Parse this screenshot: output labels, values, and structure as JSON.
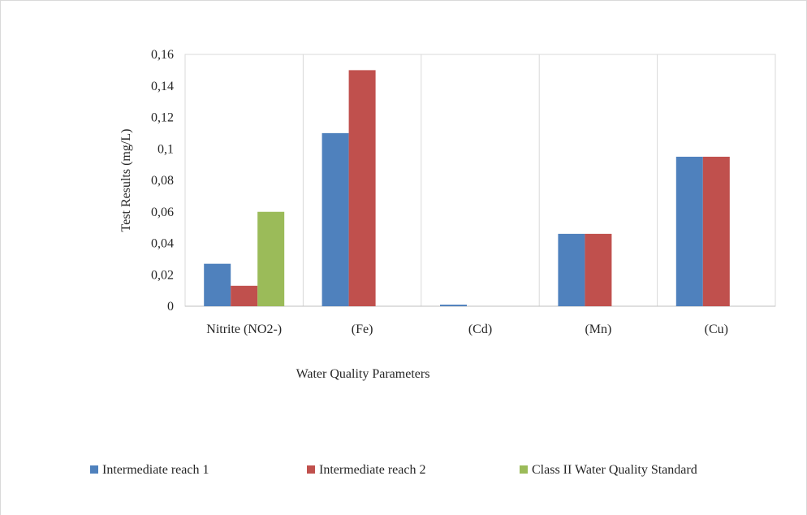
{
  "chart_data": {
    "type": "bar",
    "title": "",
    "xlabel": "Water Quality Parameters",
    "ylabel": "Test Results (mg/L)",
    "ylim": [
      0,
      0.16
    ],
    "yticks": [
      "0",
      "0,02",
      "0,04",
      "0,06",
      "0,08",
      "0,1",
      "0,12",
      "0,14",
      "0,16"
    ],
    "ytick_values": [
      0,
      0.02,
      0.04,
      0.06,
      0.08,
      0.1,
      0.12,
      0.14,
      0.16
    ],
    "categories": [
      "Nitrite (NO2-)",
      "(Fe)",
      "(Cd)",
      "(Mn)",
      "(Cu)"
    ],
    "grid": "vertical category separators",
    "legend_position": "bottom",
    "series": [
      {
        "name": "Intermediate reach 1",
        "color": "#4f81bd",
        "values": [
          0.027,
          0.11,
          0.001,
          0.046,
          0.095
        ]
      },
      {
        "name": "Intermediate reach 2",
        "color": "#c0504d",
        "values": [
          0.013,
          0.15,
          0,
          0.046,
          0.095
        ]
      },
      {
        "name": "Class II Water Quality Standard",
        "color": "#9bbb59",
        "values": [
          0.06,
          0,
          0,
          0,
          0
        ]
      }
    ]
  }
}
